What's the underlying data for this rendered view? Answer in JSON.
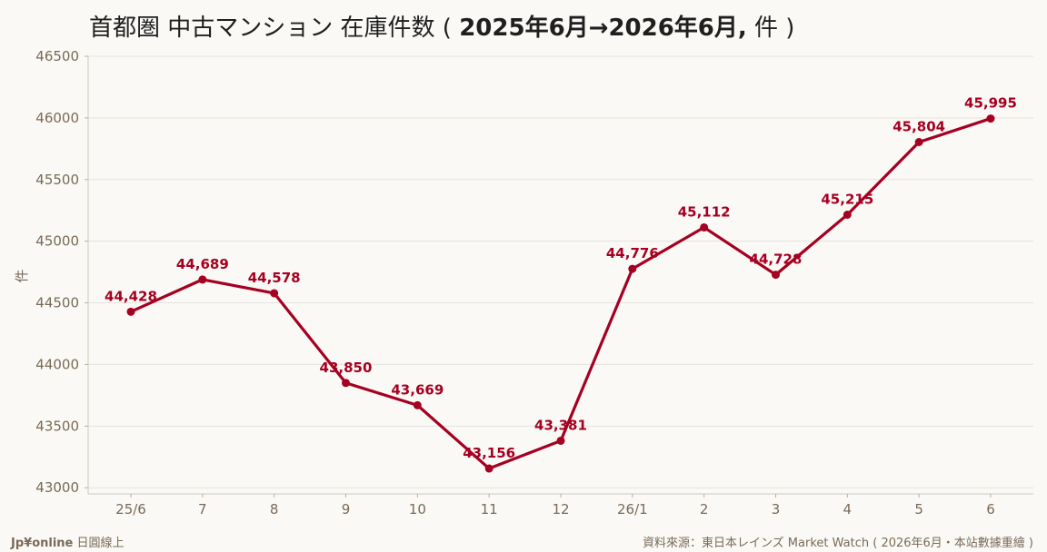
{
  "title": {
    "prefix": "首都圏 中古マンション 在庫件数 ( ",
    "bold": "2025年6月→2026年6月,",
    "suffix": " 件 )"
  },
  "footer": {
    "brand": "Jp¥online",
    "left_note": "日圓線上",
    "source": "資料來源：東日本レインズ Market Watch ( 2026年6月・本站數據重繪 )"
  },
  "chart_data": {
    "type": "line",
    "title": "首都圏 中古マンション 在庫件数 ( 2025年6月→2026年6月, 件 )",
    "xlabel": "",
    "ylabel": "件",
    "categories": [
      "25/6",
      "7",
      "8",
      "9",
      "10",
      "11",
      "12",
      "26/1",
      "2",
      "3",
      "4",
      "5",
      "6"
    ],
    "series": [
      {
        "values": [
          44428,
          44689,
          44578,
          43850,
          43669,
          43156,
          43381,
          44776,
          45112,
          44728,
          45215,
          45804,
          45995
        ],
        "labels": [
          "44,428",
          "44,689",
          "44,578",
          "43,850",
          "43,669",
          "43,156",
          "43,381",
          "44,776",
          "45,112",
          "44,728",
          "45,215",
          "45,804",
          "45,995"
        ],
        "color": "#a50021"
      }
    ],
    "ylim": [
      42950,
      46500
    ],
    "yticks": [
      43000,
      43500,
      44000,
      44500,
      45000,
      45500,
      46000,
      46500
    ],
    "grid": true,
    "legend": "none"
  }
}
